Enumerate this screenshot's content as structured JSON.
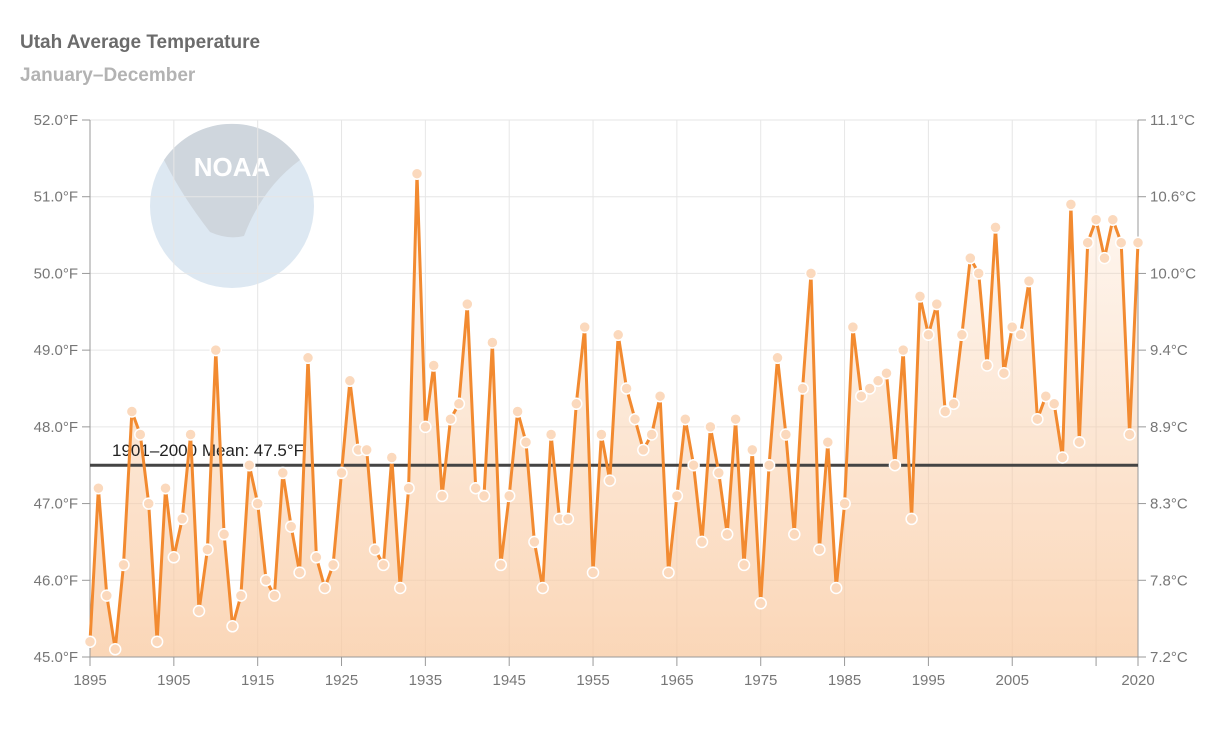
{
  "chart_data": {
    "type": "line",
    "title": "Utah Average Temperature",
    "subtitle": "January–December",
    "xlim": [
      1895,
      2020
    ],
    "ylim": [
      45.0,
      52.0
    ],
    "x_ticks": [
      "1895",
      "1905",
      "1915",
      "1925",
      "1935",
      "1945",
      "1955",
      "1965",
      "1975",
      "1985",
      "1995",
      "2005",
      "2020"
    ],
    "y_ticks_left": [
      "45.0°F",
      "46.0°F",
      "47.0°F",
      "48.0°F",
      "49.0°F",
      "50.0°F",
      "51.0°F",
      "52.0°F"
    ],
    "y_ticks_right": [
      "7.2°C",
      "7.8°C",
      "8.3°C",
      "8.9°C",
      "9.4°C",
      "10.0°C",
      "10.6°C",
      "11.1°C"
    ],
    "mean": {
      "label": "1901–2000 Mean: 47.5°F",
      "value": 47.5
    },
    "grid": true,
    "colors": {
      "line": "#f28a30",
      "fill": "#f9c9a0",
      "marker": "#fbd9bd",
      "mean": "#444444",
      "grid": "#e6e6e6",
      "watermark": "#dde8f2"
    },
    "watermark_text": "NOAA",
    "series": [
      {
        "x": [
          1895,
          1896,
          1897,
          1898,
          1899,
          1900,
          1901,
          1902,
          1903,
          1904,
          1905,
          1906,
          1907,
          1908,
          1909,
          1910,
          1911,
          1912,
          1913,
          1914,
          1915,
          1916,
          1917,
          1918,
          1919,
          1920,
          1921,
          1922,
          1923,
          1924,
          1925,
          1926,
          1927,
          1928,
          1929,
          1930,
          1931,
          1932,
          1933,
          1934,
          1935,
          1936,
          1937,
          1938,
          1939,
          1940,
          1941,
          1942,
          1943,
          1944,
          1945,
          1946,
          1947,
          1948,
          1949,
          1950,
          1951,
          1952,
          1953,
          1954,
          1955,
          1956,
          1957,
          1958,
          1959,
          1960,
          1961,
          1962,
          1963,
          1964,
          1965,
          1966,
          1967,
          1968,
          1969,
          1970,
          1971,
          1972,
          1973,
          1974,
          1975,
          1976,
          1977,
          1978,
          1979,
          1980,
          1981,
          1982,
          1983,
          1984,
          1985,
          1986,
          1987,
          1988,
          1989,
          1990,
          1991,
          1992,
          1993,
          1994,
          1995,
          1996,
          1997,
          1998,
          1999,
          2000,
          2001,
          2002,
          2003,
          2004,
          2005,
          2006,
          2007,
          2008,
          2009,
          2010,
          2011,
          2012,
          2013,
          2014,
          2015,
          2016,
          2017,
          2018,
          2019,
          2020
        ],
        "values": [
          45.2,
          47.2,
          45.8,
          45.1,
          46.2,
          48.2,
          47.9,
          47.0,
          45.2,
          47.2,
          46.3,
          46.8,
          47.9,
          45.6,
          46.4,
          49.0,
          46.6,
          45.4,
          45.8,
          47.5,
          47.0,
          46.0,
          45.8,
          47.4,
          46.7,
          46.1,
          48.9,
          46.3,
          45.9,
          46.2,
          47.4,
          48.6,
          47.7,
          47.7,
          46.4,
          46.2,
          47.6,
          45.9,
          47.2,
          51.3,
          48.0,
          48.8,
          47.1,
          48.1,
          48.3,
          49.6,
          47.2,
          47.1,
          49.1,
          46.2,
          47.1,
          48.2,
          47.8,
          46.5,
          45.9,
          47.9,
          46.8,
          46.8,
          48.3,
          49.3,
          46.1,
          47.9,
          47.3,
          49.2,
          48.5,
          48.1,
          47.7,
          47.9,
          48.4,
          46.1,
          47.1,
          48.1,
          47.5,
          46.5,
          48.0,
          47.4,
          46.6,
          48.1,
          46.2,
          47.7,
          45.7,
          47.5,
          48.9,
          47.9,
          46.6,
          48.5,
          50.0,
          46.4,
          47.8,
          45.9,
          47.0,
          49.3,
          48.4,
          48.5,
          48.6,
          48.7,
          47.5,
          49.0,
          46.8,
          49.7,
          49.2,
          49.6,
          48.2,
          48.3,
          49.2,
          50.2,
          50.0,
          48.8,
          50.6,
          48.7,
          49.3,
          49.2,
          49.9,
          48.1,
          48.4,
          48.3,
          47.6,
          50.9,
          47.8,
          50.4,
          50.7,
          50.2,
          50.7,
          50.4,
          47.9,
          50.4
        ]
      }
    ]
  }
}
